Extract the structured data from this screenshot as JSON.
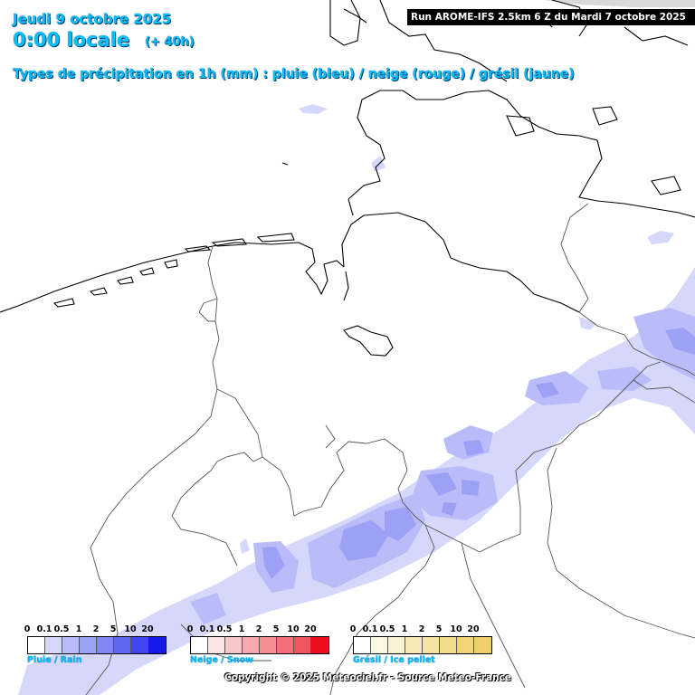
{
  "header": {
    "date": "Jeudi 9 octobre 2025",
    "time": "0:00 locale",
    "offset": "(+ 40h)",
    "subtitle": "Types de précipitation en 1h (mm) : pluie (bleu) / neige (rouge) / grésil (jaune)"
  },
  "run_info": "Run AROME-IFS 2.5km 6 Z du Mardi 7 octobre 2025",
  "legends": [
    {
      "label": "Pluie / Rain",
      "ticks": [
        "0",
        "0.1",
        "0.5",
        "1",
        "2",
        "5",
        "10",
        "20"
      ],
      "colors": [
        "#ffffff",
        "#d6d8fb",
        "#b9bcf8",
        "#9da1f6",
        "#8185f3",
        "#6166f1",
        "#4045ee",
        "#1519ea"
      ]
    },
    {
      "label": "Neige / Snow",
      "ticks": [
        "0",
        "0.1",
        "0.5",
        "1",
        "2",
        "5",
        "10",
        "20"
      ],
      "colors": [
        "#ffffff",
        "#fbe2e4",
        "#f9c6ca",
        "#f7a9af",
        "#f58d94",
        "#f3707a",
        "#f1535f",
        "#ee0d1a"
      ]
    },
    {
      "label": "Grésil / Ice pellet",
      "ticks": [
        "0",
        "0.1",
        "0.5",
        "1",
        "2",
        "5",
        "10",
        "20"
      ],
      "colors": [
        "#ffffff",
        "#fbf8e6",
        "#f9f1cf",
        "#f7eab8",
        "#f5e3a2",
        "#f3dc8b",
        "#f1d575",
        "#efcf6a"
      ]
    }
  ],
  "copyright": "Copyright © 2025 Meteociel.fr - Source Meteo-France",
  "map": {
    "rain_colors": [
      "#d6d8fb",
      "#b9bcf8",
      "#9da1f6"
    ],
    "border_color": "#555555",
    "coast_color": "#000000"
  }
}
